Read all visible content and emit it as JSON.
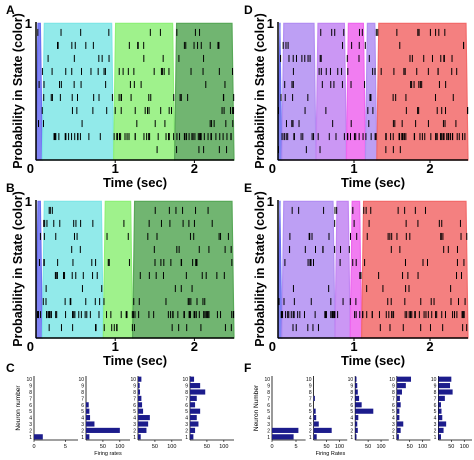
{
  "panels": [
    {
      "letter": "A",
      "ylabel": "Probability in State (color)",
      "xlabel": "Time (sec)",
      "ytick_top": "1",
      "ytick_bottom": "0",
      "xticks": [
        {
          "v": 0,
          "t": "0"
        },
        {
          "v": 1,
          "t": "1"
        },
        {
          "v": 2,
          "t": "2"
        }
      ]
    },
    {
      "letter": "B",
      "ylabel": "Probability in State (color)",
      "xlabel": "Time (sec)",
      "ytick_top": "1",
      "ytick_bottom": "0",
      "xticks": [
        {
          "v": 0,
          "t": "0"
        },
        {
          "v": 1,
          "t": "1"
        },
        {
          "v": 2,
          "t": "2"
        }
      ]
    },
    {
      "letter": "D",
      "ylabel": "Probability in State (color)",
      "xlabel": "Time (sec)",
      "ytick_top": "1",
      "ytick_bottom": "0",
      "xticks": [
        {
          "v": 0,
          "t": "0"
        },
        {
          "v": 1,
          "t": "1"
        },
        {
          "v": 2,
          "t": "2"
        }
      ]
    },
    {
      "letter": "E",
      "ylabel": "Probability in State (color)",
      "xlabel": "Time (sec)",
      "ytick_top": "1",
      "ytick_bottom": "0",
      "xticks": [
        {
          "v": 0,
          "t": "0"
        },
        {
          "v": 1,
          "t": "1"
        },
        {
          "v": 2,
          "t": "2"
        }
      ]
    }
  ],
  "bar_groups": [
    {
      "letter": "C",
      "ylabel": "Neuron number",
      "xlabel": "",
      "plots": [
        {
          "xticks": [
            {
              "v": 0,
              "t": "0"
            },
            {
              "v": 5,
              "t": "5"
            }
          ],
          "xlim": [
            0,
            7
          ],
          "values": [
            1.4,
            0,
            0,
            0,
            0,
            0,
            0,
            0,
            0,
            0
          ]
        },
        {
          "xticks": [
            {
              "v": 50,
              "t": "50"
            },
            {
              "v": 100,
              "t": "100"
            }
          ],
          "xlim": [
            0,
            130
          ],
          "values": [
            10,
            100,
            25,
            12,
            10,
            8,
            0,
            0,
            0,
            0
          ],
          "xlabel": "Firing rates"
        },
        {
          "xticks": [
            {
              "v": 50,
              "t": "50"
            },
            {
              "v": 100,
              "t": "100"
            }
          ],
          "xlim": [
            0,
            130
          ],
          "values": [
            8,
            25,
            30,
            35,
            15,
            12,
            10,
            6,
            5,
            10
          ]
        },
        {
          "xticks": [
            {
              "v": 50,
              "t": "50"
            },
            {
              "v": 100,
              "t": "100"
            }
          ],
          "xlim": [
            0,
            130
          ],
          "values": [
            10,
            15,
            25,
            20,
            30,
            15,
            20,
            45,
            30,
            12
          ]
        }
      ]
    },
    {
      "letter": "F",
      "ylabel": "Neuron Number",
      "xlabel": "",
      "plots": [
        {
          "xticks": [
            {
              "v": 0,
              "t": "0"
            },
            {
              "v": 5,
              "t": "5"
            }
          ],
          "xlim": [
            0,
            7
          ],
          "values": [
            4.5,
            5.5,
            0,
            0,
            0,
            0,
            0,
            0,
            0,
            0
          ]
        },
        {
          "xticks": [
            {
              "v": 50,
              "t": "50"
            },
            {
              "v": 100,
              "t": "100"
            }
          ],
          "xlim": [
            0,
            130
          ],
          "values": [
            12,
            70,
            20,
            10,
            8,
            0,
            5,
            0,
            0,
            0
          ],
          "xlabel": "Firing Rates"
        },
        {
          "xticks": [
            {
              "v": 50,
              "t": "50"
            },
            {
              "v": 100,
              "t": "100"
            }
          ],
          "xlim": [
            0,
            130
          ],
          "values": [
            5,
            10,
            8,
            12,
            70,
            25,
            15,
            10,
            8,
            5
          ]
        },
        {
          "xticks": [
            {
              "v": 50,
              "t": "50"
            },
            {
              "v": 100,
              "t": "100"
            }
          ],
          "xlim": [
            0,
            130
          ],
          "values": [
            8,
            15,
            25,
            10,
            10,
            15,
            12,
            20,
            35,
            55
          ]
        },
        {
          "xticks": [
            {
              "v": 50,
              "t": "50"
            },
            {
              "v": 100,
              "t": "100"
            }
          ],
          "xlim": [
            0,
            130
          ],
          "values": [
            10,
            20,
            30,
            15,
            12,
            10,
            25,
            55,
            45,
            50
          ]
        }
      ]
    }
  ],
  "neuron_ticks": [
    "1",
    "2",
    "3",
    "4",
    "5",
    "6",
    "7",
    "8",
    "9",
    "10"
  ],
  "chart_data": [
    {
      "type": "area",
      "panel": "A",
      "x_range": [
        0,
        2.5
      ],
      "ylim": [
        0,
        1
      ],
      "states": [
        {
          "color": "#6a6ff2",
          "start": 0.0,
          "end": 0.08
        },
        {
          "color": "#7fe6e6",
          "start": 0.08,
          "end": 0.98
        },
        {
          "color": "#8ef078",
          "start": 0.98,
          "end": 1.75
        },
        {
          "color": "#58a858",
          "start": 1.75,
          "end": 2.5
        }
      ],
      "raster_rows": 10
    },
    {
      "type": "area",
      "panel": "B",
      "x_range": [
        0,
        2.5
      ],
      "ylim": [
        0,
        1
      ],
      "states": [
        {
          "color": "#6a6ff2",
          "start": 0.0,
          "end": 0.08
        },
        {
          "color": "#7fe6e6",
          "start": 0.08,
          "end": 0.85
        },
        {
          "color": "#8ef078",
          "start": 0.85,
          "end": 1.22
        },
        {
          "color": "#58a858",
          "start": 1.22,
          "end": 2.5
        }
      ],
      "raster_rows": 10
    },
    {
      "type": "area",
      "panel": "D",
      "x_range": [
        0,
        2.5
      ],
      "ylim": [
        0,
        1
      ],
      "states": [
        {
          "color": "#6a6ff2",
          "start": 0.0,
          "end": 0.05
        },
        {
          "color": "#b28ef2",
          "start": 0.05,
          "end": 0.5
        },
        {
          "color": "#c285f2",
          "start": 0.5,
          "end": 0.9
        },
        {
          "color": "#ee66ee",
          "start": 0.9,
          "end": 1.15
        },
        {
          "color": "#b28ef2",
          "start": 1.15,
          "end": 1.3
        },
        {
          "color": "#f26a6a",
          "start": 1.3,
          "end": 2.5
        }
      ],
      "raster_rows": 10
    },
    {
      "type": "area",
      "panel": "E",
      "x_range": [
        0,
        2.5
      ],
      "ylim": [
        0,
        1
      ],
      "states": [
        {
          "color": "#6a6ff2",
          "start": 0.0,
          "end": 0.05
        },
        {
          "color": "#b28ef2",
          "start": 0.05,
          "end": 0.75
        },
        {
          "color": "#c285f2",
          "start": 0.75,
          "end": 0.95
        },
        {
          "color": "#ee66ee",
          "start": 0.95,
          "end": 1.1
        },
        {
          "color": "#f26a6a",
          "start": 1.1,
          "end": 2.5
        }
      ],
      "raster_rows": 10
    }
  ]
}
